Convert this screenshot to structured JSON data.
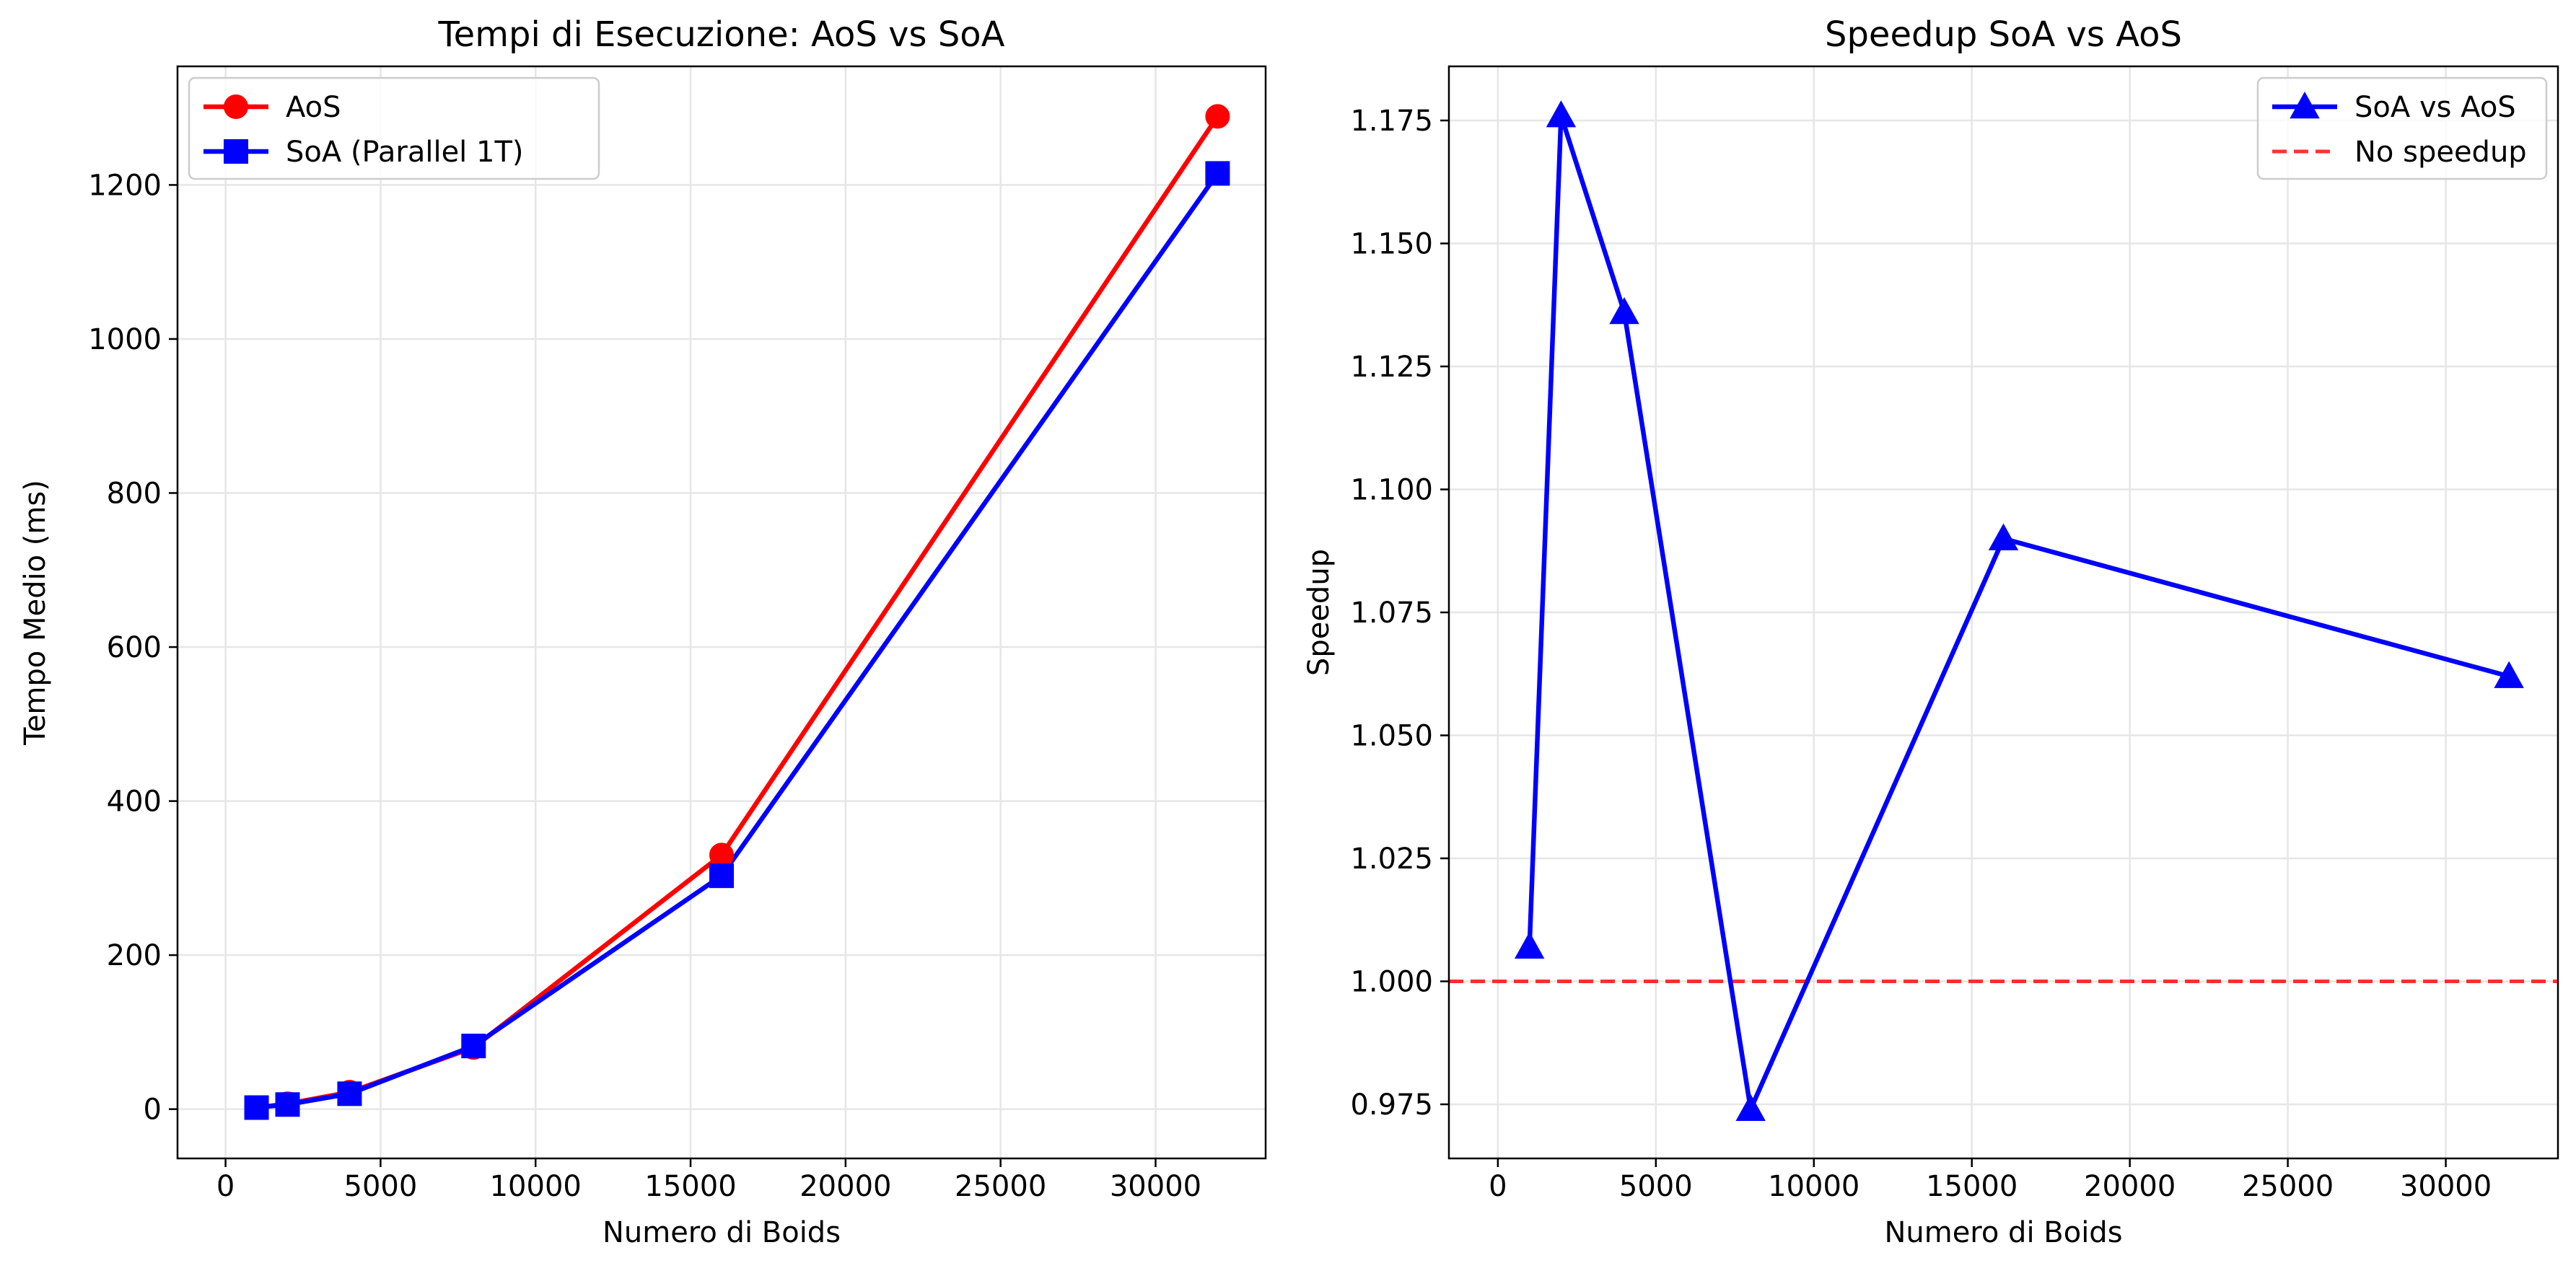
{
  "chart_data": [
    {
      "type": "line",
      "title": "Tempi di Esecuzione: AoS vs SoA",
      "xlabel": "Numero di Boids",
      "ylabel": "Tempo Medio (ms)",
      "xlim": [
        -1550,
        33550
      ],
      "ylim": [
        -64,
        1354
      ],
      "xticks": [
        0,
        5000,
        10000,
        15000,
        20000,
        25000,
        30000
      ],
      "yticks": [
        0,
        200,
        400,
        600,
        800,
        1000,
        1200
      ],
      "grid": true,
      "legend_position": "top-left",
      "series": [
        {
          "name": "AoS",
          "color": "#ff0000",
          "marker": "circle",
          "x": [
            1000,
            2000,
            4000,
            8000,
            16000,
            32000
          ],
          "y": [
            2,
            7,
            22,
            80,
            330,
            1289
          ]
        },
        {
          "name": "SoA (Parallel 1T)",
          "color": "#0000ff",
          "marker": "square",
          "x": [
            1000,
            2000,
            4000,
            8000,
            16000,
            32000
          ],
          "y": [
            2,
            6,
            20,
            82,
            303,
            1215
          ]
        }
      ]
    },
    {
      "type": "line",
      "title": "Speedup SoA vs AoS",
      "xlabel": "Numero di Boids",
      "ylabel": "Speedup",
      "xlim": [
        -1550,
        33550
      ],
      "ylim": [
        0.964,
        1.186
      ],
      "xticks": [
        0,
        5000,
        10000,
        15000,
        20000,
        25000,
        30000
      ],
      "yticks": [
        0.975,
        1.0,
        1.025,
        1.05,
        1.075,
        1.1,
        1.125,
        1.15,
        1.175
      ],
      "grid": true,
      "legend_position": "top-right",
      "series": [
        {
          "name": "SoA vs AoS",
          "color": "#0000ff",
          "marker": "triangle",
          "x": [
            1000,
            2000,
            4000,
            8000,
            16000,
            32000
          ],
          "y": [
            1.007,
            1.176,
            1.136,
            0.974,
            1.09,
            1.062
          ]
        }
      ],
      "reference_lines": [
        {
          "name": "No speedup",
          "y": 1.0,
          "color": "#ff0000",
          "style": "dashed"
        }
      ]
    }
  ]
}
